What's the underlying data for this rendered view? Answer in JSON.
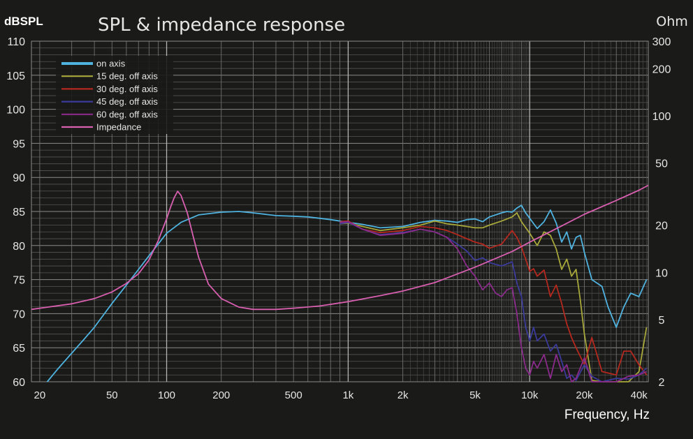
{
  "chart_data": {
    "type": "line",
    "title": "SPL & impedance response",
    "ylabel": "dBSPL",
    "y2label": "Ohm",
    "xlabel": "Frequency, Hz",
    "xscale": "log",
    "xlim": [
      18,
      45000
    ],
    "ylim": [
      60,
      110
    ],
    "y2lim": [
      2,
      300
    ],
    "y2scale": "log",
    "grid": true,
    "legend_position": "top-left",
    "x_ticks": [
      {
        "v": 20,
        "label": "20"
      },
      {
        "v": 50,
        "label": "50"
      },
      {
        "v": 100,
        "label": "100"
      },
      {
        "v": 200,
        "label": "200"
      },
      {
        "v": 500,
        "label": "500"
      },
      {
        "v": 1000,
        "label": "1k"
      },
      {
        "v": 2000,
        "label": "2k"
      },
      {
        "v": 5000,
        "label": "5k"
      },
      {
        "v": 10000,
        "label": "10k"
      },
      {
        "v": 20000,
        "label": "20k"
      },
      {
        "v": 40000,
        "label": "40k"
      }
    ],
    "y_ticks": [
      {
        "v": 110,
        "label": "110"
      },
      {
        "v": 105,
        "label": "105"
      },
      {
        "v": 100,
        "label": "100"
      },
      {
        "v": 95,
        "label": "95"
      },
      {
        "v": 90,
        "label": "90"
      },
      {
        "v": 85,
        "label": "85"
      },
      {
        "v": 80,
        "label": "80"
      },
      {
        "v": 75,
        "label": "75"
      },
      {
        "v": 70,
        "label": "70"
      },
      {
        "v": 65,
        "label": "65"
      },
      {
        "v": 60,
        "label": "60"
      }
    ],
    "y2_ticks": [
      {
        "v": 300,
        "label": "300"
      },
      {
        "v": 200,
        "label": "200"
      },
      {
        "v": 100,
        "label": "100"
      },
      {
        "v": 50,
        "label": "50"
      },
      {
        "v": 20,
        "label": "20"
      },
      {
        "v": 10,
        "label": "10"
      },
      {
        "v": 5,
        "label": "5"
      },
      {
        "v": 2,
        "label": "2"
      }
    ],
    "series": [
      {
        "name": "on axis",
        "color": "#4fb3e0",
        "axis": "left",
        "x": [
          22,
          25,
          30,
          35,
          40,
          50,
          60,
          70,
          80,
          100,
          120,
          150,
          200,
          250,
          300,
          400,
          500,
          600,
          700,
          800,
          900,
          1000,
          1200,
          1500,
          2000,
          2500,
          3000,
          3500,
          4000,
          4500,
          5000,
          5500,
          6000,
          7000,
          7500,
          8000,
          8500,
          9000,
          9500,
          10000,
          11000,
          12000,
          13000,
          14000,
          15000,
          16000,
          17000,
          18000,
          19000,
          20000,
          22000,
          25000,
          27000,
          30000,
          33000,
          36000,
          40000,
          44000
        ],
        "y": [
          60,
          61.8,
          64.2,
          66.2,
          68,
          71.5,
          74.2,
          76.5,
          78.5,
          81.8,
          83.4,
          84.5,
          84.9,
          85,
          84.8,
          84.4,
          84.3,
          84.2,
          84,
          83.8,
          83.6,
          83.4,
          83.1,
          82.6,
          82.8,
          83.4,
          83.7,
          83.6,
          83.4,
          83.8,
          83.9,
          83.5,
          84.2,
          84.8,
          85,
          84.9,
          85.5,
          85.9,
          84.8,
          84,
          82.5,
          83.5,
          85.2,
          83.3,
          80.5,
          82,
          79.5,
          81.2,
          81.5,
          79,
          75,
          74,
          71,
          68,
          71,
          73,
          72.5,
          75
        ]
      },
      {
        "name": "15 deg. off axis",
        "color": "#a8a83a",
        "axis": "left",
        "x": [
          900,
          1000,
          1200,
          1500,
          2000,
          2500,
          3000,
          3500,
          4000,
          4500,
          5000,
          5500,
          6000,
          7000,
          8000,
          8500,
          9000,
          10000,
          11000,
          12000,
          13000,
          14000,
          15000,
          16000,
          17000,
          18000,
          19000,
          20000,
          22000,
          25000,
          30000,
          35000,
          40000,
          44000
        ],
        "y": [
          83.2,
          83.3,
          82.8,
          82.2,
          82.6,
          83,
          83.6,
          83.2,
          83,
          82.8,
          82.6,
          82.6,
          83,
          83.6,
          84.2,
          84.8,
          83.5,
          81.8,
          80,
          82,
          81.5,
          79.5,
          76.5,
          78,
          75.5,
          76.5,
          72,
          67,
          60.2,
          60,
          60,
          60,
          61.5,
          68
        ]
      },
      {
        "name": "30 deg. off axis",
        "color": "#b5281e",
        "axis": "left",
        "x": [
          900,
          1000,
          1200,
          1500,
          2000,
          2500,
          3000,
          3500,
          4000,
          4500,
          5000,
          5500,
          6000,
          7000,
          8000,
          8500,
          9000,
          9500,
          10000,
          10500,
          11000,
          12000,
          13000,
          14000,
          15000,
          16000,
          17000,
          18000,
          20000,
          22000,
          25000,
          30000,
          33000,
          36000,
          40000,
          44000
        ],
        "y": [
          83.5,
          83.6,
          82.4,
          81.9,
          82.2,
          82.8,
          82.6,
          82.2,
          81.6,
          81,
          80.5,
          80.2,
          79.6,
          80.2,
          82.2,
          81.2,
          79.8,
          78,
          76.2,
          76.6,
          75.5,
          76.4,
          72.5,
          74.2,
          71.5,
          68.5,
          66.5,
          65,
          62.5,
          66.5,
          61.5,
          61,
          64.5,
          64.5,
          62.5,
          61
        ]
      },
      {
        "name": "45 deg. off axis",
        "color": "#3a3a9a",
        "axis": "left",
        "x": [
          900,
          1000,
          1200,
          1500,
          2000,
          2500,
          3000,
          3500,
          4000,
          4500,
          5000,
          5500,
          6000,
          7000,
          8000,
          8500,
          9000,
          9500,
          10000,
          10500,
          11000,
          12000,
          13000,
          14000,
          15000,
          16000,
          17000,
          18000,
          20000,
          22000,
          25000,
          30000,
          35000,
          40000,
          44000
        ],
        "y": [
          83.2,
          83.4,
          82.4,
          81.6,
          81.9,
          82.4,
          82,
          81.2,
          80.2,
          79.2,
          77.8,
          78.2,
          77.5,
          77,
          77.6,
          74.5,
          72.5,
          68,
          66,
          68,
          66,
          67,
          64.5,
          65.5,
          63,
          60.5,
          61,
          60.2,
          62.5,
          60.8,
          60,
          60.5,
          60.4,
          61,
          62
        ]
      },
      {
        "name": "60 deg. off axis",
        "color": "#8a2a8a",
        "axis": "left",
        "x": [
          900,
          1000,
          1200,
          1500,
          2000,
          2500,
          3000,
          3500,
          4000,
          4500,
          5000,
          5500,
          6000,
          6500,
          7000,
          7500,
          8000,
          8500,
          9000,
          9500,
          10000,
          10500,
          11000,
          12000,
          13000,
          14000,
          15000,
          16000,
          17000,
          18000,
          20000,
          22000,
          25000,
          30000,
          35000,
          40000,
          44000
        ],
        "y": [
          83.4,
          83.5,
          82.4,
          81.5,
          81.8,
          82.4,
          82,
          81.2,
          79.5,
          77,
          75.5,
          73.5,
          74.5,
          73,
          72.5,
          73.5,
          73.8,
          70,
          65,
          62,
          61,
          63,
          62,
          64,
          60.5,
          64,
          61.5,
          62.5,
          60,
          60.5,
          63.5,
          60,
          60,
          60,
          60.8,
          61,
          61.5
        ]
      },
      {
        "name": "Impedance",
        "color": "#d95fb0",
        "axis": "right",
        "x": [
          18,
          20,
          30,
          40,
          50,
          60,
          70,
          80,
          90,
          100,
          105,
          110,
          115,
          120,
          130,
          140,
          150,
          170,
          200,
          250,
          300,
          400,
          500,
          700,
          1000,
          1500,
          2000,
          3000,
          5000,
          8000,
          10000,
          15000,
          20000,
          30000,
          40000,
          45000
        ],
        "y": [
          5.8,
          5.9,
          6.3,
          6.8,
          7.5,
          8.5,
          9.8,
          12,
          16,
          22,
          26,
          30,
          33,
          31,
          24,
          17,
          12.5,
          8.4,
          6.8,
          6,
          5.8,
          5.8,
          5.9,
          6.1,
          6.5,
          7.1,
          7.6,
          8.6,
          10.8,
          13.6,
          15.6,
          19.8,
          23.5,
          28.8,
          33.5,
          36
        ]
      }
    ]
  }
}
